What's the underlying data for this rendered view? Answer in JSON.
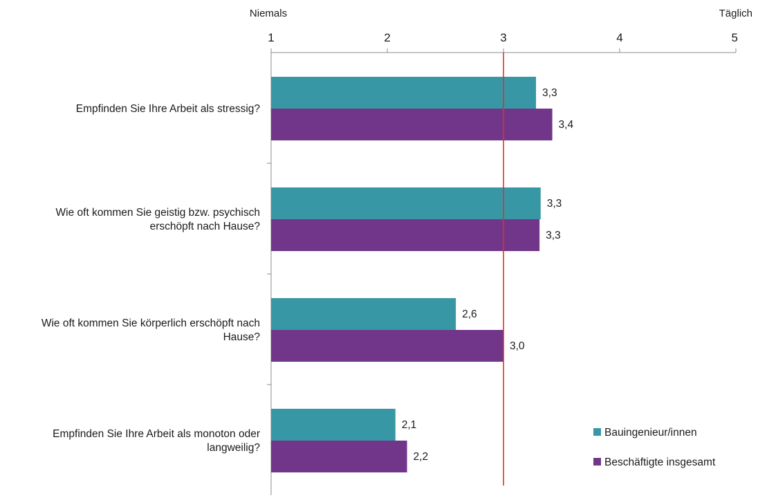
{
  "chart_data": {
    "type": "bar",
    "orientation": "horizontal",
    "xlim": [
      1,
      5
    ],
    "x_ticks": [
      "1",
      "2",
      "3",
      "4",
      "5"
    ],
    "scale_anchors": {
      "low": "Niemals",
      "high": "Täglich"
    },
    "categories": [
      [
        "Empfinden Sie Ihre Arbeit als stressig?"
      ],
      [
        "Wie oft kommen Sie geistig bzw. psychisch",
        "erschöpft nach Hause?"
      ],
      [
        "Wie oft kommen Sie körperlich erschöpft nach",
        "Hause?"
      ],
      [
        "Empfinden Sie Ihre Arbeit als monoton oder",
        "langweilig?"
      ]
    ],
    "series": [
      {
        "name": "Bauingenieur/innen",
        "color": "#3897a4",
        "values": [
          3.28,
          3.32,
          2.59,
          2.07
        ],
        "labels": [
          "3,3",
          "3,3",
          "2,6",
          "2,1"
        ]
      },
      {
        "name": "Beschäftigte insgesamt",
        "color": "#71368a",
        "values": [
          3.42,
          3.31,
          3.0,
          2.17
        ],
        "labels": [
          "3,4",
          "3,3",
          "3,0",
          "2,2"
        ]
      }
    ],
    "reference_line": {
      "value": 3,
      "color": "#d9342b"
    },
    "legend": {
      "placement": "bottom-right"
    },
    "grid": false
  }
}
